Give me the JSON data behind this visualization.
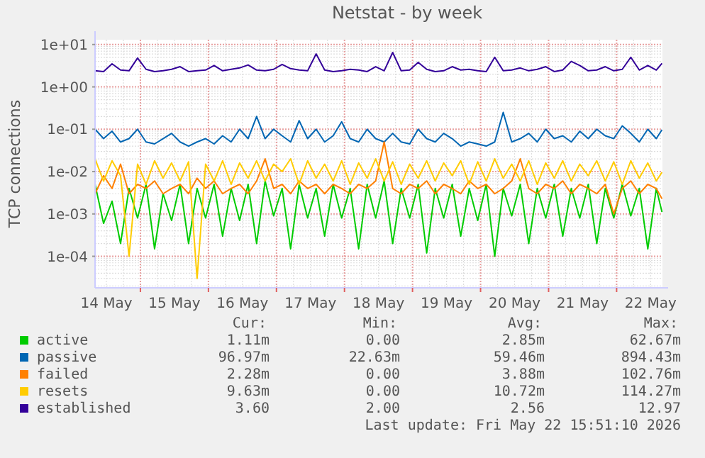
{
  "chart_data": {
    "type": "line",
    "title": "Netstat - by week",
    "ylabel": "TCP connections",
    "log": "y",
    "grid": true,
    "legend": "bottom",
    "marker": "none",
    "line_style": "solid",
    "xlim": [
      "2026-05-14T08:00",
      "2026-05-22T16:10"
    ],
    "ylim": [
      1.8e-05,
      13
    ],
    "yticks": [
      {
        "value": 10,
        "label": "1e+01"
      },
      {
        "value": 1,
        "label": "1e+00"
      },
      {
        "value": 0.1,
        "label": "1e-01"
      },
      {
        "value": 0.01,
        "label": "1e-02"
      },
      {
        "value": 0.001,
        "label": "1e-03"
      },
      {
        "value": 0.0001,
        "label": "1e-04"
      }
    ],
    "xticks": [
      {
        "value": "2026-05-14T12:00",
        "label": "14 May"
      },
      {
        "value": "2026-05-15T00:00",
        "label": null
      },
      {
        "value": "2026-05-15T12:00",
        "label": "15 May"
      },
      {
        "value": "2026-05-16T00:00",
        "label": null
      },
      {
        "value": "2026-05-16T12:00",
        "label": "16 May"
      },
      {
        "value": "2026-05-17T00:00",
        "label": null
      },
      {
        "value": "2026-05-17T12:00",
        "label": "17 May"
      },
      {
        "value": "2026-05-18T00:00",
        "label": null
      },
      {
        "value": "2026-05-18T12:00",
        "label": "18 May"
      },
      {
        "value": "2026-05-19T00:00",
        "label": null
      },
      {
        "value": "2026-05-19T12:00",
        "label": "19 May"
      },
      {
        "value": "2026-05-20T00:00",
        "label": null
      },
      {
        "value": "2026-05-20T12:00",
        "label": "20 May"
      },
      {
        "value": "2026-05-21T00:00",
        "label": null
      },
      {
        "value": "2026-05-21T12:00",
        "label": "21 May"
      },
      {
        "value": "2026-05-22T00:00",
        "label": null
      },
      {
        "value": "2026-05-22T12:00",
        "label": "22 May"
      }
    ],
    "x": [
      "2026-05-14T08:00",
      "2026-05-14T11:00",
      "2026-05-14T14:00",
      "2026-05-14T17:00",
      "2026-05-14T20:00",
      "2026-05-14T23:00",
      "2026-05-15T02:00",
      "2026-05-15T05:00",
      "2026-05-15T08:00",
      "2026-05-15T11:00",
      "2026-05-15T14:00",
      "2026-05-15T17:00",
      "2026-05-15T20:00",
      "2026-05-15T23:00",
      "2026-05-16T02:00",
      "2026-05-16T05:00",
      "2026-05-16T08:00",
      "2026-05-16T11:00",
      "2026-05-16T14:00",
      "2026-05-16T17:00",
      "2026-05-16T20:00",
      "2026-05-16T23:00",
      "2026-05-17T02:00",
      "2026-05-17T05:00",
      "2026-05-17T08:00",
      "2026-05-17T11:00",
      "2026-05-17T14:00",
      "2026-05-17T17:00",
      "2026-05-17T20:00",
      "2026-05-17T23:00",
      "2026-05-18T02:00",
      "2026-05-18T05:00",
      "2026-05-18T08:00",
      "2026-05-18T11:00",
      "2026-05-18T14:00",
      "2026-05-18T17:00",
      "2026-05-18T20:00",
      "2026-05-18T23:00",
      "2026-05-19T02:00",
      "2026-05-19T05:00",
      "2026-05-19T08:00",
      "2026-05-19T11:00",
      "2026-05-19T14:00",
      "2026-05-19T17:00",
      "2026-05-19T20:00",
      "2026-05-19T23:00",
      "2026-05-20T02:00",
      "2026-05-20T05:00",
      "2026-05-20T08:00",
      "2026-05-20T11:00",
      "2026-05-20T14:00",
      "2026-05-20T17:00",
      "2026-05-20T20:00",
      "2026-05-20T23:00",
      "2026-05-21T02:00",
      "2026-05-21T05:00",
      "2026-05-21T08:00",
      "2026-05-21T11:00",
      "2026-05-21T14:00",
      "2026-05-21T17:00",
      "2026-05-21T20:00",
      "2026-05-21T23:00",
      "2026-05-22T02:00",
      "2026-05-22T05:00",
      "2026-05-22T08:00",
      "2026-05-22T11:00",
      "2026-05-22T14:00",
      "2026-05-22T16:00"
    ],
    "series": [
      {
        "name": "active",
        "color": "#00cc00",
        "values": [
          0.005,
          0.0006,
          0.002,
          0.0002,
          0.004,
          0.0008,
          0.005,
          0.00015,
          0.003,
          0.0007,
          0.005,
          0.0002,
          0.004,
          0.0008,
          0.005,
          0.0003,
          0.004,
          0.0007,
          0.005,
          0.0002,
          0.006,
          0.0009,
          0.004,
          0.00015,
          0.005,
          0.0008,
          0.004,
          0.0003,
          0.005,
          0.0008,
          0.004,
          0.00015,
          0.005,
          0.0008,
          0.006,
          0.0002,
          0.004,
          0.0008,
          0.005,
          0.00012,
          0.004,
          0.0008,
          0.005,
          0.0003,
          0.004,
          0.0007,
          0.005,
          0.0001,
          0.004,
          0.0009,
          0.005,
          0.0002,
          0.004,
          0.0008,
          0.005,
          0.0003,
          0.004,
          0.0008,
          0.005,
          0.0002,
          0.004,
          0.0008,
          0.005,
          0.0009,
          0.004,
          0.00015,
          0.004,
          0.00111
        ]
      },
      {
        "name": "passive",
        "color": "#0066b3",
        "values": [
          0.1,
          0.06,
          0.09,
          0.05,
          0.06,
          0.1,
          0.05,
          0.045,
          0.06,
          0.08,
          0.05,
          0.04,
          0.05,
          0.06,
          0.045,
          0.07,
          0.05,
          0.1,
          0.06,
          0.2,
          0.06,
          0.1,
          0.07,
          0.05,
          0.16,
          0.06,
          0.1,
          0.05,
          0.07,
          0.15,
          0.06,
          0.05,
          0.1,
          0.06,
          0.05,
          0.08,
          0.05,
          0.045,
          0.1,
          0.06,
          0.05,
          0.08,
          0.06,
          0.04,
          0.05,
          0.045,
          0.04,
          0.05,
          0.25,
          0.05,
          0.06,
          0.08,
          0.05,
          0.1,
          0.06,
          0.07,
          0.05,
          0.09,
          0.06,
          0.1,
          0.07,
          0.06,
          0.12,
          0.08,
          0.05,
          0.1,
          0.06,
          0.097
        ]
      },
      {
        "name": "failed",
        "color": "#ff8000",
        "values": [
          0.003,
          0.008,
          0.004,
          0.015,
          0.003,
          0.005,
          0.004,
          0.006,
          0.003,
          0.004,
          0.005,
          0.003,
          0.007,
          0.004,
          0.006,
          0.003,
          0.004,
          0.005,
          0.003,
          0.006,
          0.02,
          0.004,
          0.005,
          0.003,
          0.006,
          0.004,
          0.005,
          0.003,
          0.005,
          0.004,
          0.003,
          0.005,
          0.004,
          0.006,
          0.05,
          0.004,
          0.003,
          0.005,
          0.004,
          0.006,
          0.003,
          0.005,
          0.004,
          0.003,
          0.006,
          0.004,
          0.005,
          0.003,
          0.004,
          0.006,
          0.02,
          0.004,
          0.003,
          0.005,
          0.004,
          0.006,
          0.003,
          0.005,
          0.004,
          0.003,
          0.005,
          0.001,
          0.004,
          0.006,
          0.003,
          0.005,
          0.004,
          0.00228
        ]
      },
      {
        "name": "resets",
        "color": "#ffcc00",
        "values": [
          0.02,
          0.006,
          0.018,
          0.008,
          0.0001,
          0.015,
          0.005,
          0.018,
          0.007,
          0.016,
          0.006,
          0.017,
          3e-05,
          0.015,
          0.006,
          0.018,
          0.005,
          0.016,
          0.007,
          0.018,
          0.006,
          0.015,
          0.01,
          0.02,
          0.005,
          0.018,
          0.007,
          0.015,
          0.006,
          0.018,
          0.005,
          0.016,
          0.007,
          0.02,
          0.006,
          0.017,
          0.005,
          0.015,
          0.007,
          0.018,
          0.006,
          0.016,
          0.008,
          0.018,
          0.005,
          0.017,
          0.006,
          0.02,
          0.007,
          0.015,
          0.006,
          0.018,
          0.005,
          0.016,
          0.007,
          0.018,
          0.006,
          0.015,
          0.008,
          0.018,
          0.006,
          0.017,
          0.005,
          0.018,
          0.007,
          0.016,
          0.006,
          0.00963
        ]
      },
      {
        "name": "established",
        "color": "#330099",
        "values": [
          2.4,
          2.3,
          3.5,
          2.5,
          2.4,
          4.8,
          2.6,
          2.3,
          2.4,
          2.6,
          3.0,
          2.3,
          2.4,
          2.5,
          3.2,
          2.4,
          2.6,
          2.8,
          3.3,
          2.5,
          2.4,
          2.6,
          3.4,
          2.7,
          2.5,
          2.4,
          6.0,
          2.5,
          2.3,
          2.4,
          2.6,
          2.5,
          2.3,
          3.0,
          2.4,
          6.5,
          2.4,
          2.5,
          3.8,
          2.6,
          2.3,
          2.4,
          3.0,
          2.5,
          2.6,
          2.4,
          2.3,
          5.0,
          2.4,
          2.5,
          2.8,
          2.4,
          2.6,
          3.0,
          2.3,
          2.5,
          4.0,
          3.2,
          2.4,
          2.5,
          3.0,
          2.4,
          2.6,
          5.0,
          2.5,
          3.2,
          2.5,
          3.6
        ]
      }
    ],
    "annotations": [
      "Cur:",
      "Min:",
      "Avg:",
      "Max:",
      "1.11m",
      "0.00",
      "2.85m",
      "62.67m",
      "96.97m",
      "22.63m",
      "59.46m",
      "894.43m",
      "2.28m",
      "0.00",
      "3.88m",
      "102.76m",
      "9.63m",
      "0.00",
      "10.72m",
      "114.27m",
      "3.60",
      "2.00",
      "2.56",
      "12.97",
      "Last update: Fri May 22 15:51:10 2026"
    ]
  }
}
